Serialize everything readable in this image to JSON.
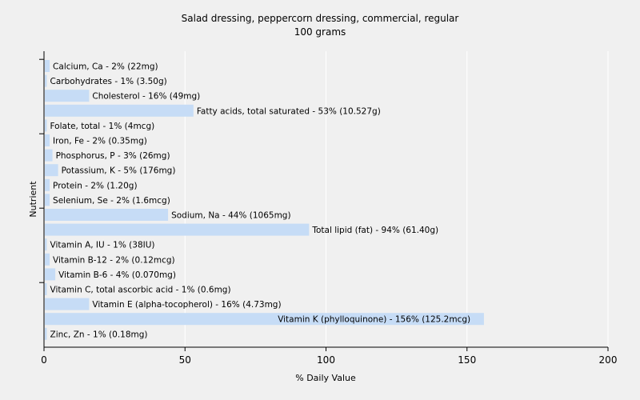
{
  "chart_data": {
    "type": "bar",
    "orientation": "horizontal",
    "title": "Salad dressing, peppercorn dressing, commercial, regular",
    "subtitle": "100 grams",
    "xlabel": "% Daily Value",
    "ylabel": "Nutrient",
    "xlim": [
      0,
      200
    ],
    "xticks": [
      0,
      50,
      100,
      150,
      200
    ],
    "grid": true,
    "bar_color": "#c6dcf6",
    "categories": [
      "Calcium, Ca",
      "Carbohydrates",
      "Cholesterol",
      "Fatty acids, total saturated",
      "Folate, total",
      "Iron, Fe",
      "Phosphorus, P",
      "Potassium, K",
      "Protein",
      "Selenium, Se",
      "Sodium, Na",
      "Total lipid (fat)",
      "Vitamin A, IU",
      "Vitamin B-12",
      "Vitamin B-6",
      "Vitamin C, total ascorbic acid",
      "Vitamin E (alpha-tocopherol)",
      "Vitamin K (phylloquinone)",
      "Zinc, Zn"
    ],
    "values": [
      2,
      1,
      16,
      53,
      1,
      2,
      3,
      5,
      2,
      2,
      44,
      94,
      1,
      2,
      4,
      1,
      16,
      156,
      1
    ],
    "labels": [
      "Calcium, Ca - 2% (22mg)",
      "Carbohydrates - 1% (3.50g)",
      "Cholesterol - 16% (49mg)",
      "Fatty acids, total saturated - 53% (10.527g)",
      "Folate, total - 1% (4mcg)",
      "Iron, Fe - 2% (0.35mg)",
      "Phosphorus, P - 3% (26mg)",
      "Potassium, K - 5% (176mg)",
      "Protein - 2% (1.20g)",
      "Selenium, Se - 2% (1.6mcg)",
      "Sodium, Na - 44% (1065mg)",
      "Total lipid (fat) - 94% (61.40g)",
      "Vitamin A, IU - 1% (38IU)",
      "Vitamin B-12 - 2% (0.12mcg)",
      "Vitamin B-6 - 4% (0.070mg)",
      "Vitamin C, total ascorbic acid - 1% (0.6mg)",
      "Vitamin E (alpha-tocopherol) - 16% (4.73mg)",
      "Vitamin K (phylloquinone) - 156% (125.2mcg)",
      "Zinc, Zn - 1% (0.18mg)"
    ]
  }
}
